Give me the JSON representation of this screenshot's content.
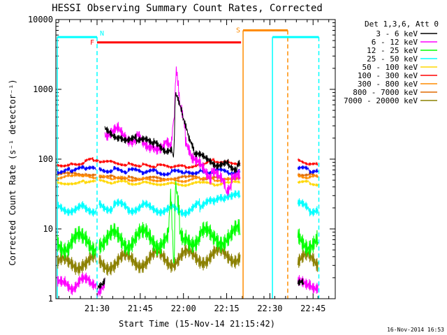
{
  "chart_data": {
    "type": "line",
    "title": "HESSI Observing Summary Count Rates, Corrected",
    "xlabel": "Start Time (15-Nov-14 21:15:42)",
    "ylabel": "Corrected Count Rate (s⁻¹ detector⁻¹)",
    "timestamp": "16-Nov-2014 16:53",
    "x_unit": "minutes after 21:15:42",
    "xlim": [
      0,
      97
    ],
    "ylim": [
      1,
      10000
    ],
    "y_scale": "log",
    "x_ticks": [
      {
        "label": "21:30",
        "x": 14.3
      },
      {
        "label": "21:45",
        "x": 29.3
      },
      {
        "label": "22:00",
        "x": 44.3
      },
      {
        "label": "22:15",
        "x": 59.3
      },
      {
        "label": "22:30",
        "x": 74.3
      },
      {
        "label": "22:45",
        "x": 89.3
      }
    ],
    "y_ticks": [
      {
        "label": "1",
        "y": 1
      },
      {
        "label": "10",
        "y": 10
      },
      {
        "label": "100",
        "y": 100
      },
      {
        "label": "1000",
        "y": 1000
      },
      {
        "label": "10000",
        "y": 10000
      }
    ],
    "legend": {
      "header": "Det 1,3,6, Att 0",
      "placement": "right"
    },
    "series": [
      {
        "name": "3 - 6 keV",
        "color": "#000000",
        "segments": [
          [
            [
              14.5,
              1.6
            ],
            [
              16,
              1.8
            ],
            [
              17,
              2
            ]
          ],
          [
            [
              17,
              250
            ],
            [
              22,
              220
            ],
            [
              28,
              190
            ],
            [
              34,
              160
            ],
            [
              38,
              140
            ],
            [
              40.5,
              130
            ],
            [
              41,
              120
            ],
            [
              41.5,
              800
            ],
            [
              42.5,
              650
            ],
            [
              44,
              400
            ],
            [
              46,
              200
            ],
            [
              48,
              120
            ],
            [
              52,
              95
            ],
            [
              56,
              88
            ],
            [
              60,
              80
            ],
            [
              63,
              78
            ],
            [
              64,
              80
            ]
          ],
          [
            [
              84,
              1.5
            ],
            [
              86,
              1.7
            ]
          ]
        ]
      },
      {
        "name": "6 - 12 keV",
        "color": "#ff00ff",
        "segments": [
          [
            [
              0.5,
              1.5
            ],
            [
              3,
              1.8
            ],
            [
              6,
              1.6
            ],
            [
              9,
              1.8
            ],
            [
              12,
              1.5
            ],
            [
              14,
              1.7
            ]
          ],
          [
            [
              14.5,
              1.4
            ],
            [
              16,
              1.7
            ],
            [
              17,
              2
            ]
          ],
          [
            [
              17,
              260
            ],
            [
              22,
              240
            ],
            [
              28,
              200
            ],
            [
              34,
              170
            ],
            [
              38,
              150
            ],
            [
              40,
              140
            ],
            [
              41,
              400
            ],
            [
              41.8,
              2400
            ],
            [
              42.5,
              1300
            ],
            [
              43.5,
              500
            ],
            [
              45,
              220
            ],
            [
              47,
              120
            ],
            [
              50,
              75
            ],
            [
              54,
              60
            ],
            [
              57,
              48
            ],
            [
              59,
              40
            ],
            [
              61,
              45
            ],
            [
              64,
              55
            ]
          ],
          [
            [
              84,
              1.5
            ],
            [
              88,
              1.8
            ],
            [
              91,
              1.6
            ]
          ]
        ]
      },
      {
        "name": "12 - 25 keV",
        "color": "#00ff00",
        "segments": [
          [
            [
              0.5,
              6.5
            ],
            [
              5,
              6.3
            ],
            [
              10,
              6.6
            ],
            [
              14,
              6.4
            ]
          ],
          [
            [
              15,
              7.5
            ],
            [
              20,
              7.2
            ],
            [
              25,
              7.0
            ],
            [
              30,
              7.3
            ],
            [
              35,
              7.0
            ],
            [
              39,
              7.1
            ],
            [
              40,
              30
            ],
            [
              41,
              3
            ],
            [
              41.5,
              40
            ],
            [
              43,
              12
            ],
            [
              45,
              8
            ],
            [
              50,
              7.5
            ],
            [
              55,
              7.8
            ],
            [
              60,
              8
            ],
            [
              64,
              8.2
            ]
          ],
          [
            [
              84,
              7
            ],
            [
              88,
              6.8
            ],
            [
              91,
              6.5
            ]
          ]
        ]
      },
      {
        "name": "25 - 50 keV",
        "color": "#00ffff",
        "segments": [
          [
            [
              0.5,
              20
            ],
            [
              5,
              20
            ],
            [
              10,
              19
            ],
            [
              14,
              20
            ]
          ],
          [
            [
              15,
              22
            ],
            [
              20,
              21
            ],
            [
              25,
              20.5
            ],
            [
              30,
              20
            ],
            [
              35,
              20
            ],
            [
              40,
              19
            ],
            [
              45,
              19
            ],
            [
              50,
              21
            ],
            [
              55,
              23
            ],
            [
              58,
              25
            ],
            [
              61,
              26
            ],
            [
              64,
              30
            ]
          ],
          [
            [
              84,
              21
            ],
            [
              88,
              20
            ],
            [
              91,
              19
            ]
          ]
        ]
      },
      {
        "name": "50 - 100 keV",
        "color": "#ffd700",
        "segments": [
          [
            [
              0.5,
              45
            ],
            [
              5,
              46
            ],
            [
              10,
              48
            ],
            [
              14,
              47
            ]
          ],
          [
            [
              15,
              48
            ],
            [
              20,
              47
            ],
            [
              25,
              46
            ],
            [
              30,
              45
            ],
            [
              35,
              45
            ],
            [
              40,
              44
            ],
            [
              45,
              44
            ],
            [
              50,
              45
            ],
            [
              55,
              44
            ],
            [
              60,
              45
            ],
            [
              64,
              46
            ]
          ],
          [
            [
              84,
              48
            ],
            [
              88,
              46
            ],
            [
              91,
              44
            ]
          ]
        ]
      },
      {
        "name": "100 - 300 keV",
        "color": "#ff0000",
        "segments": [
          [
            [
              0.5,
              82
            ],
            [
              5,
              85
            ],
            [
              10,
              90
            ],
            [
              13,
              100
            ],
            [
              15,
              95
            ]
          ],
          [
            [
              15,
              95
            ],
            [
              20,
              88
            ],
            [
              25,
              85
            ],
            [
              30,
              82
            ],
            [
              35,
              80
            ],
            [
              40,
              78
            ],
            [
              45,
              77
            ],
            [
              50,
              85
            ],
            [
              55,
              95
            ],
            [
              60,
              92
            ],
            [
              64,
              88
            ]
          ],
          [
            [
              84,
              95
            ],
            [
              88,
              88
            ],
            [
              91,
              82
            ]
          ]
        ]
      },
      {
        "name": "300 - 800 keV",
        "color": "#ff8c00",
        "segments": [
          [
            [
              0.5,
              55
            ],
            [
              5,
              56
            ],
            [
              10,
              57
            ],
            [
              14,
              56
            ]
          ],
          [
            [
              15,
              55
            ],
            [
              20,
              53
            ],
            [
              25,
              52
            ],
            [
              30,
              51
            ],
            [
              35,
              51
            ],
            [
              40,
              50
            ],
            [
              45,
              50
            ],
            [
              50,
              52
            ],
            [
              55,
              51
            ],
            [
              60,
              52
            ],
            [
              64,
              52
            ]
          ],
          [
            [
              84,
              57
            ],
            [
              88,
              56
            ],
            [
              91,
              55
            ]
          ]
        ]
      },
      {
        "name": "800 - 7000 keV",
        "color": "#e06a00",
        "segments": [
          [
            [
              0.5,
              60
            ],
            [
              5,
              61
            ],
            [
              10,
              62
            ],
            [
              14,
              61
            ]
          ],
          [
            [
              15,
              58
            ],
            [
              20,
              56
            ],
            [
              25,
              54
            ],
            [
              30,
              53
            ],
            [
              35,
              53
            ],
            [
              40,
              54
            ],
            [
              45,
              55
            ],
            [
              50,
              54
            ],
            [
              55,
              53
            ],
            [
              60,
              54
            ],
            [
              64,
              54
            ]
          ],
          [
            [
              84,
              62
            ],
            [
              88,
              60
            ],
            [
              91,
              58
            ]
          ]
        ]
      },
      {
        "name": "7000 - 20000 keV",
        "color": "#8b8000",
        "segments": [
          [
            [
              0.5,
              3
            ],
            [
              5,
              3.2
            ],
            [
              10,
              3.5
            ],
            [
              14,
              3.3
            ]
          ],
          [
            [
              15,
              3.2
            ],
            [
              20,
              3.4
            ],
            [
              25,
              3.5
            ],
            [
              30,
              3.6
            ],
            [
              35,
              3.8
            ],
            [
              40,
              3.7
            ],
            [
              45,
              3.9
            ],
            [
              50,
              4.0
            ],
            [
              55,
              4.1
            ],
            [
              60,
              4.2
            ],
            [
              64,
              4.3
            ]
          ],
          [
            [
              84,
              3.6
            ],
            [
              88,
              3.5
            ],
            [
              91,
              3.4
            ]
          ]
        ]
      }
    ],
    "blue_series": {
      "name": "blue",
      "color": "#0000ff",
      "segments": [
        [
          [
            0.5,
            68
          ],
          [
            5,
            70
          ],
          [
            10,
            72
          ],
          [
            14,
            70
          ]
        ],
        [
          [
            15,
            72
          ],
          [
            20,
            70
          ],
          [
            25,
            68
          ],
          [
            30,
            66
          ],
          [
            35,
            65
          ],
          [
            40,
            64
          ],
          [
            45,
            65
          ],
          [
            50,
            68
          ],
          [
            55,
            67
          ],
          [
            60,
            66
          ],
          [
            64,
            66
          ]
        ],
        [
          [
            84,
            72
          ],
          [
            88,
            70
          ],
          [
            91,
            68
          ]
        ]
      ]
    },
    "state_bars": [
      {
        "label": "",
        "color": "#00ffff",
        "x0": 0.5,
        "x1": 14.3,
        "y": 5600,
        "label_pos": null
      },
      {
        "label": "N",
        "color": "#00ffff",
        "x0": 14.3,
        "x1": 14.3,
        "y": 5600,
        "label_pos": "after"
      },
      {
        "label": "F",
        "color": "#ff0000",
        "x0": 14.3,
        "x1": 64.3,
        "y": 4700,
        "label_pos": "before"
      },
      {
        "label": "S",
        "color": "#ff8c00",
        "x0": 65,
        "x1": 80.5,
        "y": 7000,
        "label_pos": "before"
      },
      {
        "label": "",
        "color": "#00ffff",
        "x0": 75.2,
        "x1": 91.3,
        "y": 5600,
        "label_pos": null
      }
    ],
    "vertical_markers": [
      {
        "x": 0.5,
        "color": "#00ffff",
        "style": "solid",
        "ymax": 5600
      },
      {
        "x": 14.3,
        "color": "#00ffff",
        "style": "dashed",
        "ymax": 5600
      },
      {
        "x": 65,
        "color": "#ff8c00",
        "style": "solid",
        "ymax": 7000
      },
      {
        "x": 75.2,
        "color": "#00ffff",
        "style": "solid",
        "ymax": 5600
      },
      {
        "x": 80.5,
        "color": "#ff8c00",
        "style": "dashed",
        "ymax": 7000
      },
      {
        "x": 91.3,
        "color": "#00ffff",
        "style": "dashed",
        "ymax": 5600
      }
    ]
  }
}
